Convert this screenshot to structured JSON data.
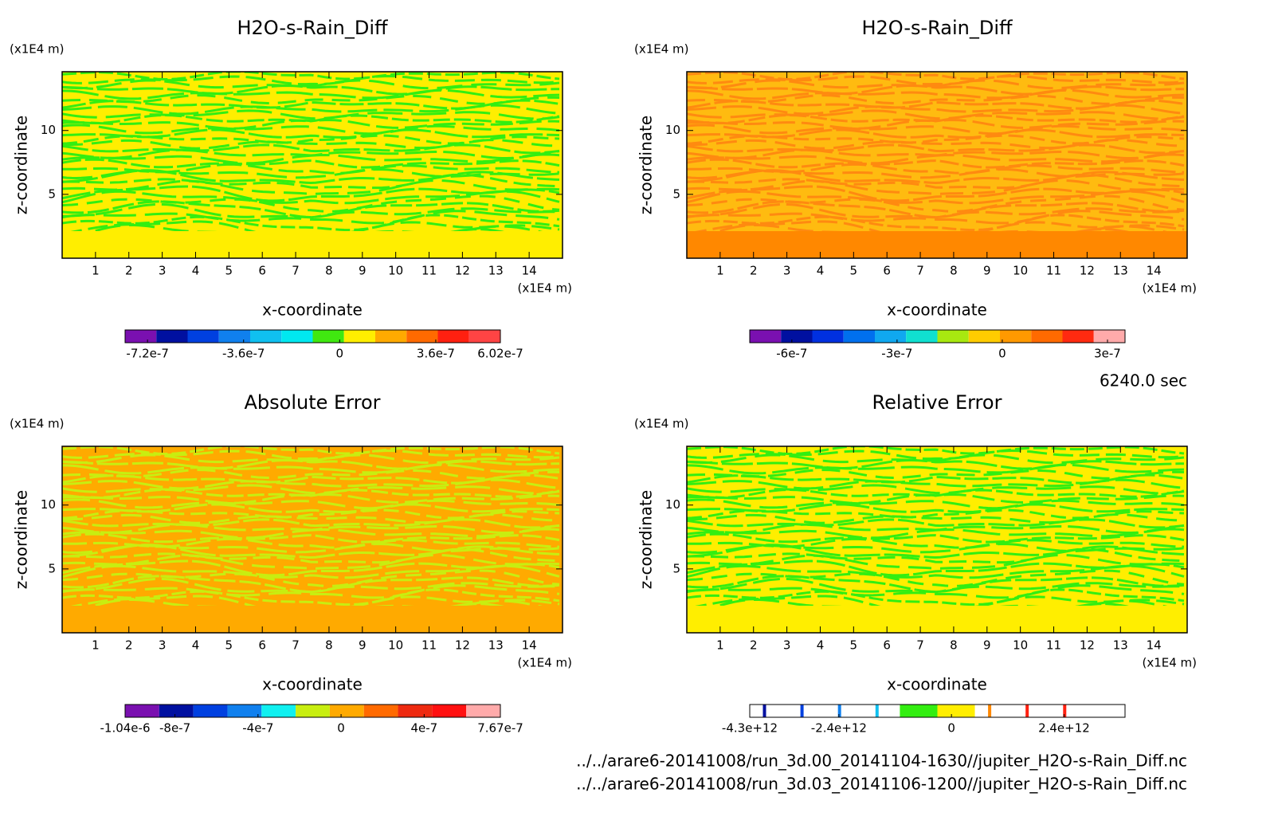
{
  "chart_data": [
    {
      "type": "contour",
      "title": "H2O-s-Rain_Diff",
      "xlabel": "x-coordinate",
      "ylabel": "z-coordinate",
      "x_unit": "(x1E4 m)",
      "y_unit": "(x1E4 m)",
      "xlim": [
        0,
        15
      ],
      "ylim": [
        0,
        14.6
      ],
      "xticks": [
        1,
        2,
        3,
        4,
        5,
        6,
        7,
        8,
        9,
        10,
        11,
        12,
        13,
        14
      ],
      "yticks": [
        5,
        10
      ],
      "field_colors": {
        "base": "#ffee00",
        "stripe": "#33ee11",
        "bottom": "#ffee00"
      },
      "colorbar": {
        "limits": [
          -8.04e-07,
          6.02e-07
        ],
        "colors": [
          "#7a10b0",
          "#0010a0",
          "#0040e0",
          "#1080ee",
          "#10c0f0",
          "#00e8f0",
          "#40e810",
          "#ffee00",
          "#ffaa00",
          "#ff6a00",
          "#ff2010",
          "#ff4444"
        ],
        "ticks": [
          -7.2e-07,
          -3.6e-07,
          0,
          3.6e-07,
          6.02e-07
        ]
      }
    },
    {
      "type": "contour",
      "title": "H2O-s-Rain_Diff",
      "xlabel": "x-coordinate",
      "ylabel": "z-coordinate",
      "x_unit": "(x1E4 m)",
      "y_unit": "(x1E4 m)",
      "xlim": [
        0,
        15
      ],
      "ylim": [
        0,
        14.6
      ],
      "xticks": [
        1,
        2,
        3,
        4,
        5,
        6,
        7,
        8,
        9,
        10,
        11,
        12,
        13,
        14
      ],
      "yticks": [
        5,
        10
      ],
      "field_colors": {
        "base": "#ffbb10",
        "stripe": "#ff8a10",
        "bottom": "#ff8800"
      },
      "colorbar": {
        "limits": [
          -7.2e-07,
          3.5e-07
        ],
        "colors": [
          "#7a10b0",
          "#0010a0",
          "#0030e0",
          "#0070ee",
          "#10a8f0",
          "#10e0d0",
          "#a8e810",
          "#ffcc00",
          "#ff9900",
          "#ff6a00",
          "#ff2a10",
          "#ffaaaa"
        ],
        "ticks": [
          -6e-07,
          -3e-07,
          0,
          3e-07
        ]
      }
    },
    {
      "type": "contour",
      "title": "Absolute Error",
      "xlabel": "x-coordinate",
      "ylabel": "z-coordinate",
      "x_unit": "(x1E4 m)",
      "y_unit": "(x1E4 m)",
      "xlim": [
        0,
        15
      ],
      "ylim": [
        0,
        14.6
      ],
      "xticks": [
        1,
        2,
        3,
        4,
        5,
        6,
        7,
        8,
        9,
        10,
        11,
        12,
        13,
        14
      ],
      "yticks": [
        5,
        10
      ],
      "field_colors": {
        "base": "#ffaa00",
        "stripe": "#c8ee10",
        "bottom": "#ffaa00"
      },
      "colorbar": {
        "limits": [
          -1.04e-06,
          7.67e-07
        ],
        "colors": [
          "#7a10b0",
          "#0010a0",
          "#0040e0",
          "#1080ee",
          "#10f0f0",
          "#c8ee10",
          "#ffaa00",
          "#ff6a00",
          "#ee2a10",
          "#ff1010",
          "#ffaaaa"
        ],
        "ticks": [
          {
            "value": -1.04e-06,
            "label": "-1.04e-6"
          },
          -8e-07,
          -4e-07,
          0,
          4e-07,
          7.67e-07
        ]
      }
    },
    {
      "type": "contour",
      "title": "Relative Error",
      "xlabel": "x-coordinate",
      "ylabel": "z-coordinate",
      "x_unit": "(x1E4 m)",
      "y_unit": "(x1E4 m)",
      "xlim": [
        0,
        15
      ],
      "ylim": [
        0,
        14.6
      ],
      "xticks": [
        1,
        2,
        3,
        4,
        5,
        6,
        7,
        8,
        9,
        10,
        11,
        12,
        13,
        14
      ],
      "yticks": [
        5,
        10
      ],
      "field_colors": {
        "base": "#ffee00",
        "stripe": "#33ee11",
        "bottom": "#ffee00"
      },
      "colorbar": {
        "limits": [
          -4300000000000.0,
          3700000000000.0
        ],
        "colors": [
          "#ffffff",
          "#ffffff",
          "#ffffff",
          "#ffffff",
          "#33ee11",
          "#ffee00",
          "#ffffff",
          "#ffffff",
          "#ffffff",
          "#ffffff"
        ],
        "edge_colors": [
          "#0010a0",
          "#0040e0",
          "#1080ee",
          "#10c0f0",
          null,
          null,
          "#ff8800",
          "#ff2010",
          "#ff2010",
          null
        ],
        "ticks": [
          {
            "value": -4300000000000.0,
            "label": "-4.3e+12"
          },
          {
            "value": -2400000000000.0,
            "label": "-2.4e+12"
          },
          0,
          {
            "value": 2400000000000.0,
            "label": "2.4e+12"
          }
        ]
      }
    }
  ],
  "time": "6240.0 sec",
  "files": [
    "../../arare6-20141008/run_3d.00_20141104-1630//jupiter_H2O-s-Rain_Diff.nc",
    "../../arare6-20141008/run_3d.03_20141106-1200//jupiter_H2O-s-Rain_Diff.nc"
  ]
}
